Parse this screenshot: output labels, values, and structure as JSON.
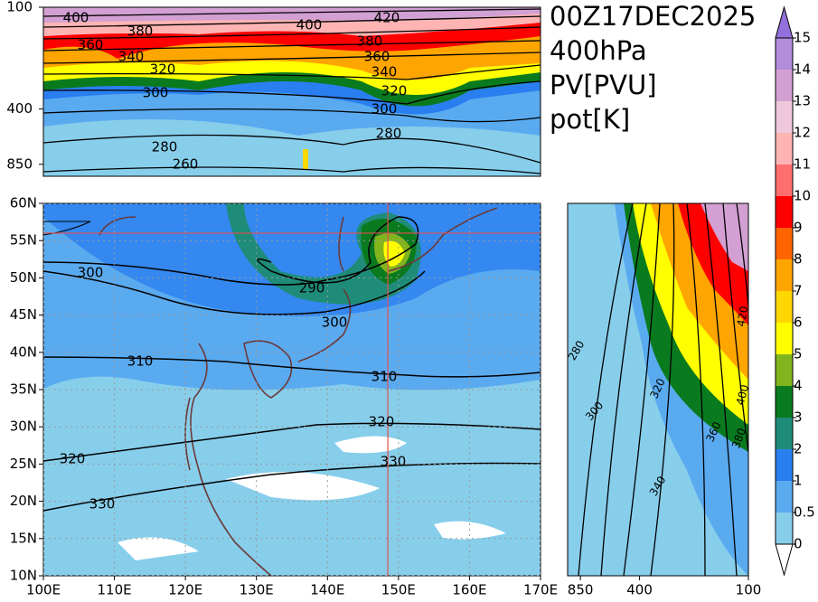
{
  "title_lines": [
    "00Z17DEC2025",
    "400hPa",
    "PV[PVU]",
    "pot[K]"
  ],
  "colorbar": {
    "levels": [
      0,
      0.5,
      1,
      2,
      3,
      4,
      5,
      6,
      7,
      8,
      9,
      10,
      11,
      12,
      13,
      14,
      15
    ],
    "colors": [
      "#87ceeb",
      "#5aaaf0",
      "#2a7ff0",
      "#1e8c78",
      "#0a7a1e",
      "#82b41e",
      "#ffff00",
      "#ffd700",
      "#ffa500",
      "#ff6400",
      "#ff0000",
      "#ff6e6e",
      "#ffb4b4",
      "#f0c8dc",
      "#d2a0d2",
      "#b48cdc"
    ],
    "over_color": "#9370db",
    "under_color": "#ffffff"
  },
  "time_height": {
    "ylim": [
      1000,
      100
    ],
    "log": true,
    "yticks": [
      100,
      400,
      850
    ],
    "contour_labels": [
      400,
      380,
      400,
      420,
      360,
      380,
      360,
      340,
      340,
      320,
      320,
      300,
      300,
      280,
      280,
      260
    ]
  },
  "map": {
    "xlim": [
      100,
      170
    ],
    "ylim": [
      10,
      60
    ],
    "xticks": [
      {
        "value": 100,
        "label": "100E"
      },
      {
        "value": 110,
        "label": "110E"
      },
      {
        "value": 120,
        "label": "120E"
      },
      {
        "value": 130,
        "label": "130E"
      },
      {
        "value": 140,
        "label": "140E"
      },
      {
        "value": 150,
        "label": "150E"
      },
      {
        "value": 160,
        "label": "160E"
      },
      {
        "value": 170,
        "label": "170E"
      }
    ],
    "yticks": [
      {
        "value": 10,
        "label": "10N"
      },
      {
        "value": 15,
        "label": "15N"
      },
      {
        "value": 20,
        "label": "20N"
      },
      {
        "value": 25,
        "label": "25N"
      },
      {
        "value": 30,
        "label": "30N"
      },
      {
        "value": 35,
        "label": "35N"
      },
      {
        "value": 40,
        "label": "40N"
      },
      {
        "value": 45,
        "label": "45N"
      },
      {
        "value": 50,
        "label": "50N"
      },
      {
        "value": 55,
        "label": "55N"
      },
      {
        "value": 60,
        "label": "60N"
      }
    ],
    "section_lon": 148.5,
    "section_lat": 56,
    "contour_labels": [
      300,
      290,
      300,
      310,
      310,
      320,
      320,
      330,
      330
    ]
  },
  "lat_height": {
    "xlim": [
      1000,
      100
    ],
    "log": true,
    "xticks": [
      850,
      400,
      100
    ],
    "contour_labels": [
      280,
      300,
      320,
      340,
      360,
      380,
      400,
      420
    ]
  }
}
